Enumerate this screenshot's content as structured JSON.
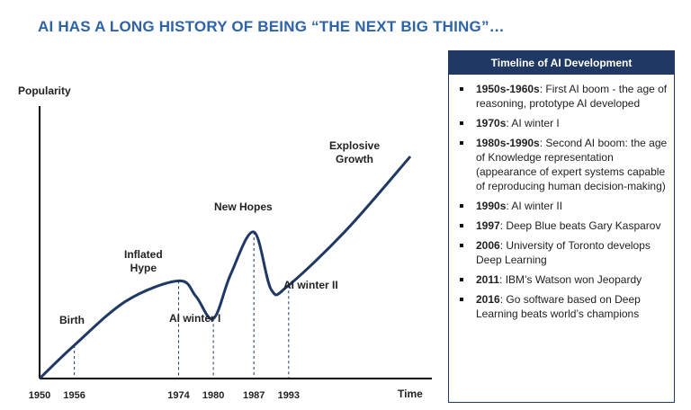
{
  "slide_title": "AI HAS A LONG HISTORY OF BEING “THE NEXT BIG THING”…",
  "chart_data": {
    "type": "line",
    "ylabel": "Popularity",
    "xlabel": "Time",
    "x_ticks": [
      "1950",
      "1956",
      "1974",
      "1980",
      "1987",
      "1993"
    ],
    "curve": [
      {
        "x": 1950,
        "y": 0
      },
      {
        "x": 1956,
        "y": 15
      },
      {
        "x": 1965,
        "y": 35
      },
      {
        "x": 1974,
        "y": 44
      },
      {
        "x": 1977,
        "y": 37
      },
      {
        "x": 1980,
        "y": 27
      },
      {
        "x": 1983,
        "y": 47
      },
      {
        "x": 1987,
        "y": 66
      },
      {
        "x": 1990,
        "y": 40
      },
      {
        "x": 1993,
        "y": 42
      },
      {
        "x": 2003,
        "y": 67
      },
      {
        "x": 2014,
        "y": 100
      }
    ],
    "xlim": [
      1950,
      2014
    ],
    "ylim": [
      0,
      130
    ],
    "dashed_guides": [
      1956,
      1974,
      1980,
      1987,
      1993
    ],
    "annotations": [
      {
        "label": "Birth",
        "x": 1956
      },
      {
        "label": "Inflated\nHype",
        "x": 1974
      },
      {
        "label": "AI winter I",
        "x": 1980
      },
      {
        "label": "New Hopes",
        "x": 1987
      },
      {
        "label": "AI winter II",
        "x": 1993
      },
      {
        "label": "Explosive\nGrowth",
        "x": 2008
      }
    ],
    "line_color": "#1f3864"
  },
  "timeline": {
    "header": "Timeline of AI Development",
    "items": [
      {
        "year": "1950s-1960s",
        "text": ": First AI boom - the age of reasoning, prototype AI developed"
      },
      {
        "year": "1970s",
        "text": ": AI winter I"
      },
      {
        "year": "1980s-1990s",
        "text": ": Second AI boom: the age of Knowledge representation (appearance of expert systems capable of reproducing human decision-making)"
      },
      {
        "year": "1990s",
        "text": ": AI winter II"
      },
      {
        "year": "1997",
        "text": ": Deep Blue beats Gary Kasparov"
      },
      {
        "year": "2006",
        "text": ": University of Toronto develops Deep Learning"
      },
      {
        "year": "2011",
        "text": ": IBM’s Watson won Jeopardy"
      },
      {
        "year": "2016",
        "text": ": Go software based on Deep Learning beats world’s champions"
      }
    ]
  }
}
